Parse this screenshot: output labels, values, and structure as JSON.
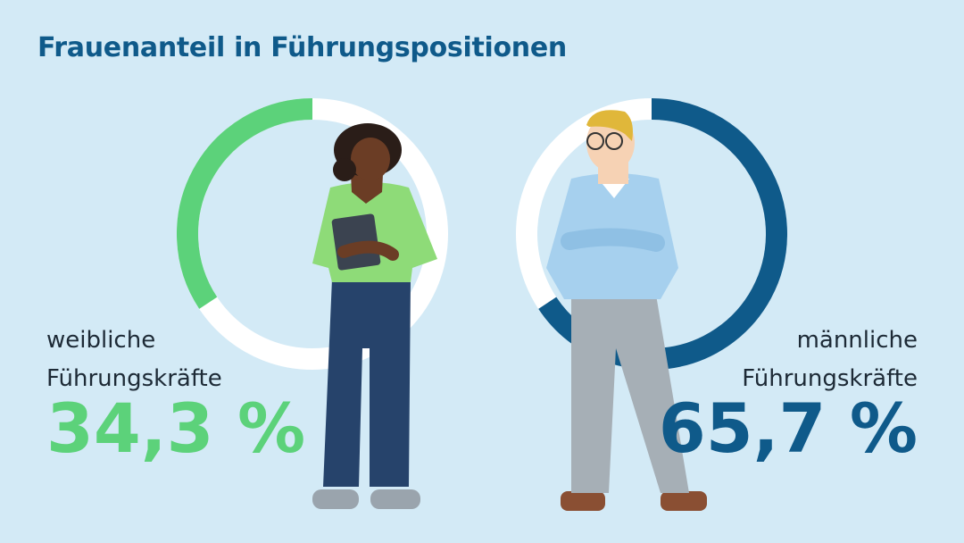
{
  "title": "Frauenanteil in Führungspositionen",
  "chart_data": [
    {
      "type": "donut",
      "label": "weibliche Führungskräfte",
      "values": [
        34.3
      ],
      "value_labels": [
        "34,3 %"
      ],
      "color": "#5cd27a",
      "direction": "counterclockwise"
    },
    {
      "type": "donut",
      "label": "männliche Führungskräfte",
      "values": [
        65.7
      ],
      "value_labels": [
        "65,7 %"
      ],
      "color": "#0f5a8a",
      "direction": "clockwise"
    }
  ]
}
